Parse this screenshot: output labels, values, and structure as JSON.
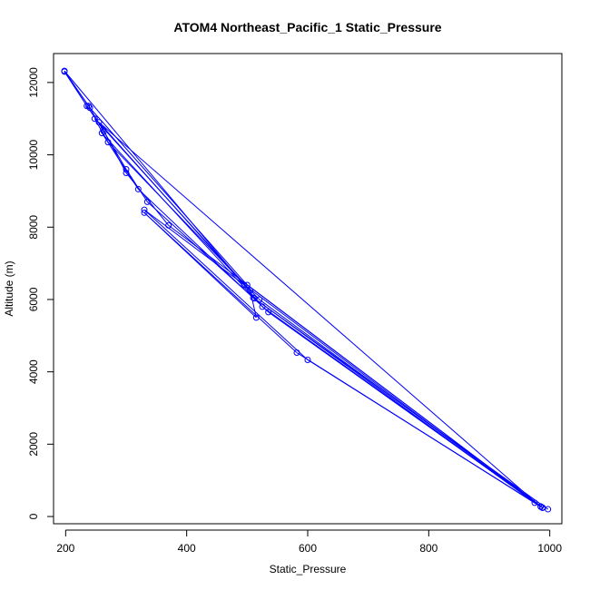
{
  "chart_data": {
    "type": "line",
    "title": "ATOM4 Northeast_Pacific_1 Static_Pressure",
    "xlabel": "Static_Pressure",
    "ylabel": "Altitude (m)",
    "xlim": [
      180,
      1020
    ],
    "ylim": [
      -200,
      12800
    ],
    "xticks": [
      200,
      400,
      600,
      800,
      1000
    ],
    "yticks": [
      0,
      2000,
      4000,
      6000,
      8000,
      10000,
      12000
    ],
    "grid": false,
    "marker": "open-circle",
    "line_color": "#0000ff",
    "series": [
      {
        "values": [
          [
            997,
            200
          ],
          [
            510,
            6050
          ],
          [
            335,
            8700
          ],
          [
            300,
            9600
          ],
          [
            263,
            10650
          ],
          [
            238,
            11350
          ],
          [
            198,
            12300
          ],
          [
            235,
            11350
          ],
          [
            262,
            10700
          ],
          [
            300,
            9500
          ],
          [
            370,
            8050
          ],
          [
            988,
            250
          ],
          [
            500,
            6400
          ],
          [
            240,
            11300
          ],
          [
            198,
            12320
          ],
          [
            525,
            5800
          ],
          [
            988,
            240
          ],
          [
            535,
            5650
          ],
          [
            320,
            9050
          ],
          [
            260,
            10600
          ],
          [
            512,
            6030
          ],
          [
            975,
            380
          ],
          [
            330,
            8480
          ],
          [
            600,
            4330
          ],
          [
            985,
            280
          ],
          [
            520,
            6000
          ],
          [
            270,
            10350
          ],
          [
            248,
            11000
          ],
          [
            505,
            6250
          ],
          [
            515,
            5500
          ],
          [
            330,
            8400
          ],
          [
            582,
            4530
          ],
          [
            985,
            270
          ],
          [
            255,
            10900
          ],
          [
            495,
            6400
          ]
        ]
      }
    ]
  }
}
